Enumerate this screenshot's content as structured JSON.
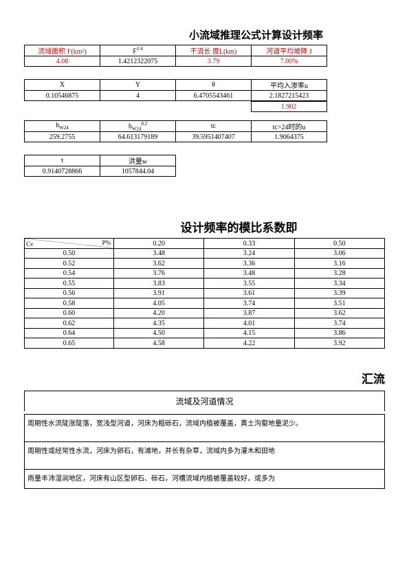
{
  "titles": {
    "main1": "小流域推理公式计算设计频率",
    "main2": "设计频率的模比系数即",
    "main3": "汇流",
    "sub3": "流域及河道情况"
  },
  "table1": {
    "headers": [
      "流域面积 F(km²)",
      "F^(1/4)",
      "干流长  度L(km)",
      "河道平均坡降 J"
    ],
    "values": [
      "4.08",
      "1.4212322075",
      "3.79",
      "7.00%"
    ]
  },
  "table2": {
    "headers": [
      "X",
      "Y",
      "θ",
      "平均入渗率u"
    ],
    "values": [
      "0.10546875",
      "4",
      "6.4705543461",
      "2.1827215423"
    ],
    "extra": "1.902"
  },
  "table3": {
    "headers_raw": [
      "h_W24",
      "h_W24^0.2",
      "tc",
      "tc>24时的u"
    ],
    "values": [
      "259.2755",
      "64.613179189",
      "39.5951407407",
      "1.9064375"
    ]
  },
  "table4": {
    "headers": [
      "τ",
      "洪量w"
    ],
    "values": [
      "0.9140728866",
      "1057844.04"
    ]
  },
  "table5": {
    "p_label": "P%",
    "cv_label": "Cv",
    "cols": [
      "0.20",
      "0.33",
      "0.50"
    ],
    "rows": [
      {
        "cv": "0.50",
        "v": [
          "3.48",
          "3.24",
          "3.06"
        ]
      },
      {
        "cv": "0.52",
        "v": [
          "3.62",
          "3.36",
          "3.16"
        ]
      },
      {
        "cv": "0.54",
        "v": [
          "3.76",
          "3.48",
          "3.28"
        ]
      },
      {
        "cv": "0.55",
        "v": [
          "3.83",
          "3.55",
          "3.34"
        ]
      },
      {
        "cv": "0.56",
        "v": [
          "3.91",
          "3.61",
          "3.39"
        ]
      },
      {
        "cv": "0.58",
        "v": [
          "4.05",
          "3.74",
          "3.51"
        ]
      },
      {
        "cv": "0.60",
        "v": [
          "4.20",
          "3.87",
          "3.62"
        ]
      },
      {
        "cv": "0.62",
        "v": [
          "4.35",
          "4.01",
          "3.74"
        ]
      },
      {
        "cv": "0.64",
        "v": [
          "4.50",
          "4.15",
          "3.86"
        ]
      },
      {
        "cv": "0.65",
        "v": [
          "4.58",
          "4.22",
          "3.92"
        ]
      }
    ]
  },
  "descriptions": {
    "d1": "周期性水流陡涨陡落，宽浅型河道，河床为粗砾石，流域内植被覆盖，黄土沟壑地量泥少。",
    "d2": "周期性或经常性水流，河床为卵石，有滩地，并长有杂草，流域内多为灌木和田地",
    "d3": "雨量丰沛湿润地区，河床有山区型卵石、砾石，河槽流域内植被覆盖较好，或多为"
  }
}
